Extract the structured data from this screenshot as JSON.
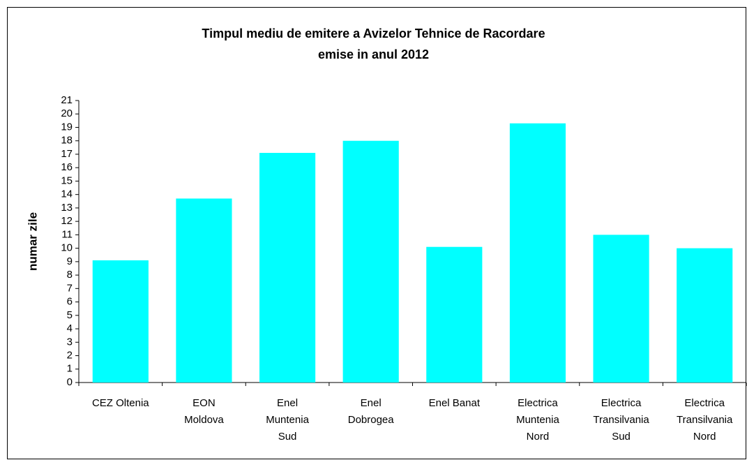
{
  "chart_data": {
    "type": "bar",
    "title": "Timpul mediu de emitere a Avizelor Tehnice de Racordare\nemise in anul 2012",
    "y_label": "numar zile",
    "categories": [
      "CEZ Oltenia",
      "EON\nMoldova",
      "Enel\nMuntenia\nSud",
      "Enel\nDobrogea",
      "Enel Banat",
      "Electrica\nMuntenia\nNord",
      "Electrica\nTransilvania\nSud",
      "Electrica\nTransilvania\nNord"
    ],
    "values": [
      9.1,
      13.7,
      17.1,
      18.0,
      10.1,
      19.3,
      11.0,
      10.0
    ],
    "color": "#00ffff",
    "ylim": [
      0,
      21
    ],
    "yticks": [
      0,
      1,
      2,
      3,
      4,
      5,
      6,
      7,
      8,
      9,
      10,
      11,
      12,
      13,
      14,
      15,
      16,
      17,
      18,
      19,
      20,
      21
    ],
    "grid": false
  }
}
